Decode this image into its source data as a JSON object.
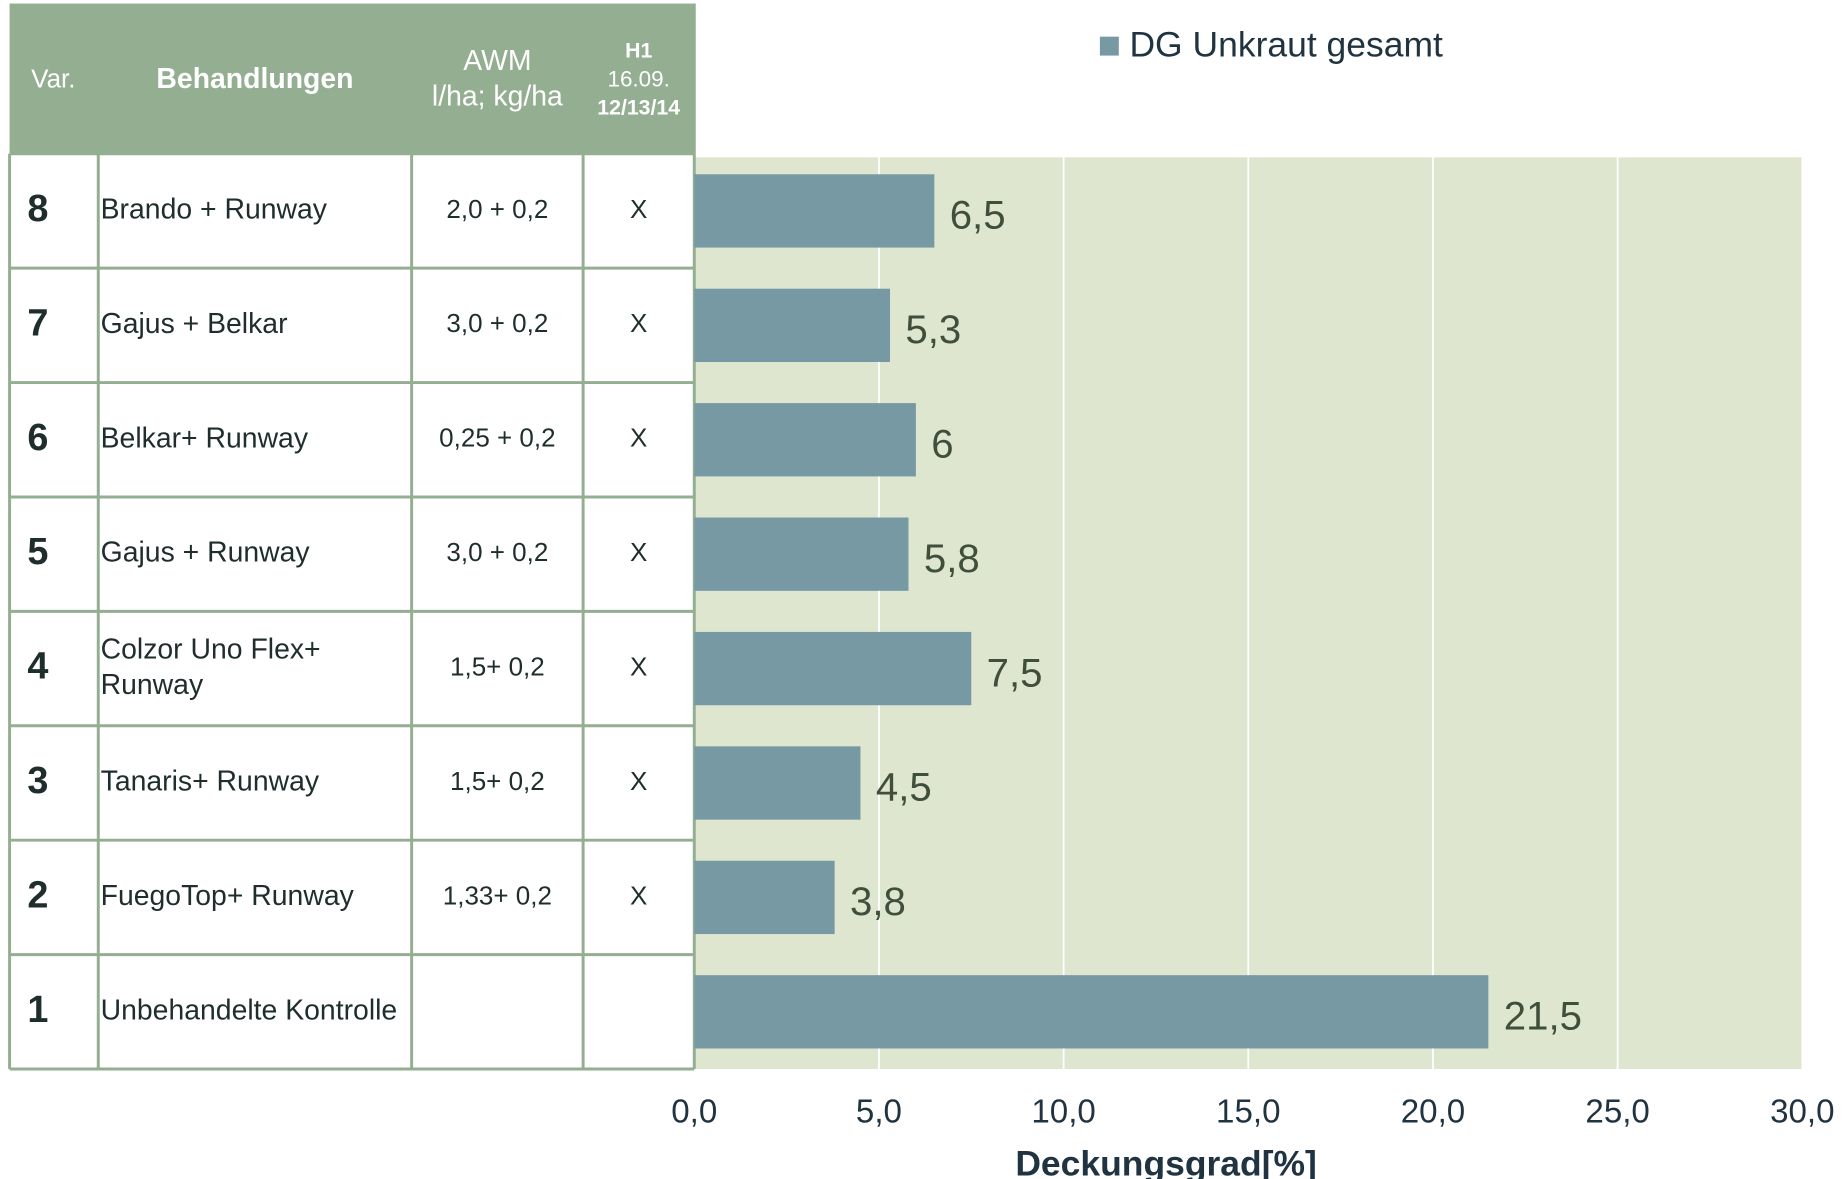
{
  "table": {
    "header": [
      [
        "Var."
      ],
      [
        "Behandlungen"
      ],
      [
        "AWM",
        "l/ha; kg/ha"
      ],
      [
        "H1",
        "16.09.",
        "12/13/14"
      ]
    ],
    "rows": [
      [
        "8",
        "Brando + Runway",
        "2,0 + 0,2",
        "X"
      ],
      [
        "7",
        "Gajus + Belkar",
        "3,0 + 0,2",
        "X"
      ],
      [
        "6",
        "Belkar+ Runway",
        "0,25 + 0,2",
        "X"
      ],
      [
        "5",
        "Gajus + Runway",
        "3,0 + 0,2",
        "X"
      ],
      [
        "4",
        [
          "Colzor Uno Flex+",
          "Runway"
        ],
        "1,5+ 0,2",
        "X"
      ],
      [
        "3",
        "Tanaris+ Runway",
        "1,5+ 0,2",
        "X"
      ],
      [
        "2",
        "FuegoTop+ Runway",
        "1,33+ 0,2",
        "X"
      ],
      [
        "1",
        "Unbehandelte Kontrolle"
      ]
    ]
  },
  "chart_data": {
    "type": "bar",
    "orientation": "horizontal",
    "series": [
      {
        "name": "DG Unkraut gesamt",
        "color": "#7799a3",
        "values": [
          6.5,
          5.3,
          6,
          5.8,
          7.5,
          4.5,
          3.8,
          21.5
        ],
        "value_labels": [
          "6,5",
          "5,3",
          "6",
          "5,8",
          "7,5",
          "4,5",
          "3,8",
          "21,5"
        ]
      }
    ],
    "xlim": [
      0,
      30
    ],
    "xticks": [
      {
        "value": 0,
        "label": "0,0"
      },
      {
        "value": 5,
        "label": "5,0"
      },
      {
        "value": 10,
        "label": "10,0"
      },
      {
        "value": 15,
        "label": "15,0"
      },
      {
        "value": 20,
        "label": "20,0"
      },
      {
        "value": 25,
        "label": "25,0"
      },
      {
        "value": 30,
        "label": "30,0"
      }
    ],
    "xlabel": "Deckungsgrad[%]",
    "grid": true
  }
}
